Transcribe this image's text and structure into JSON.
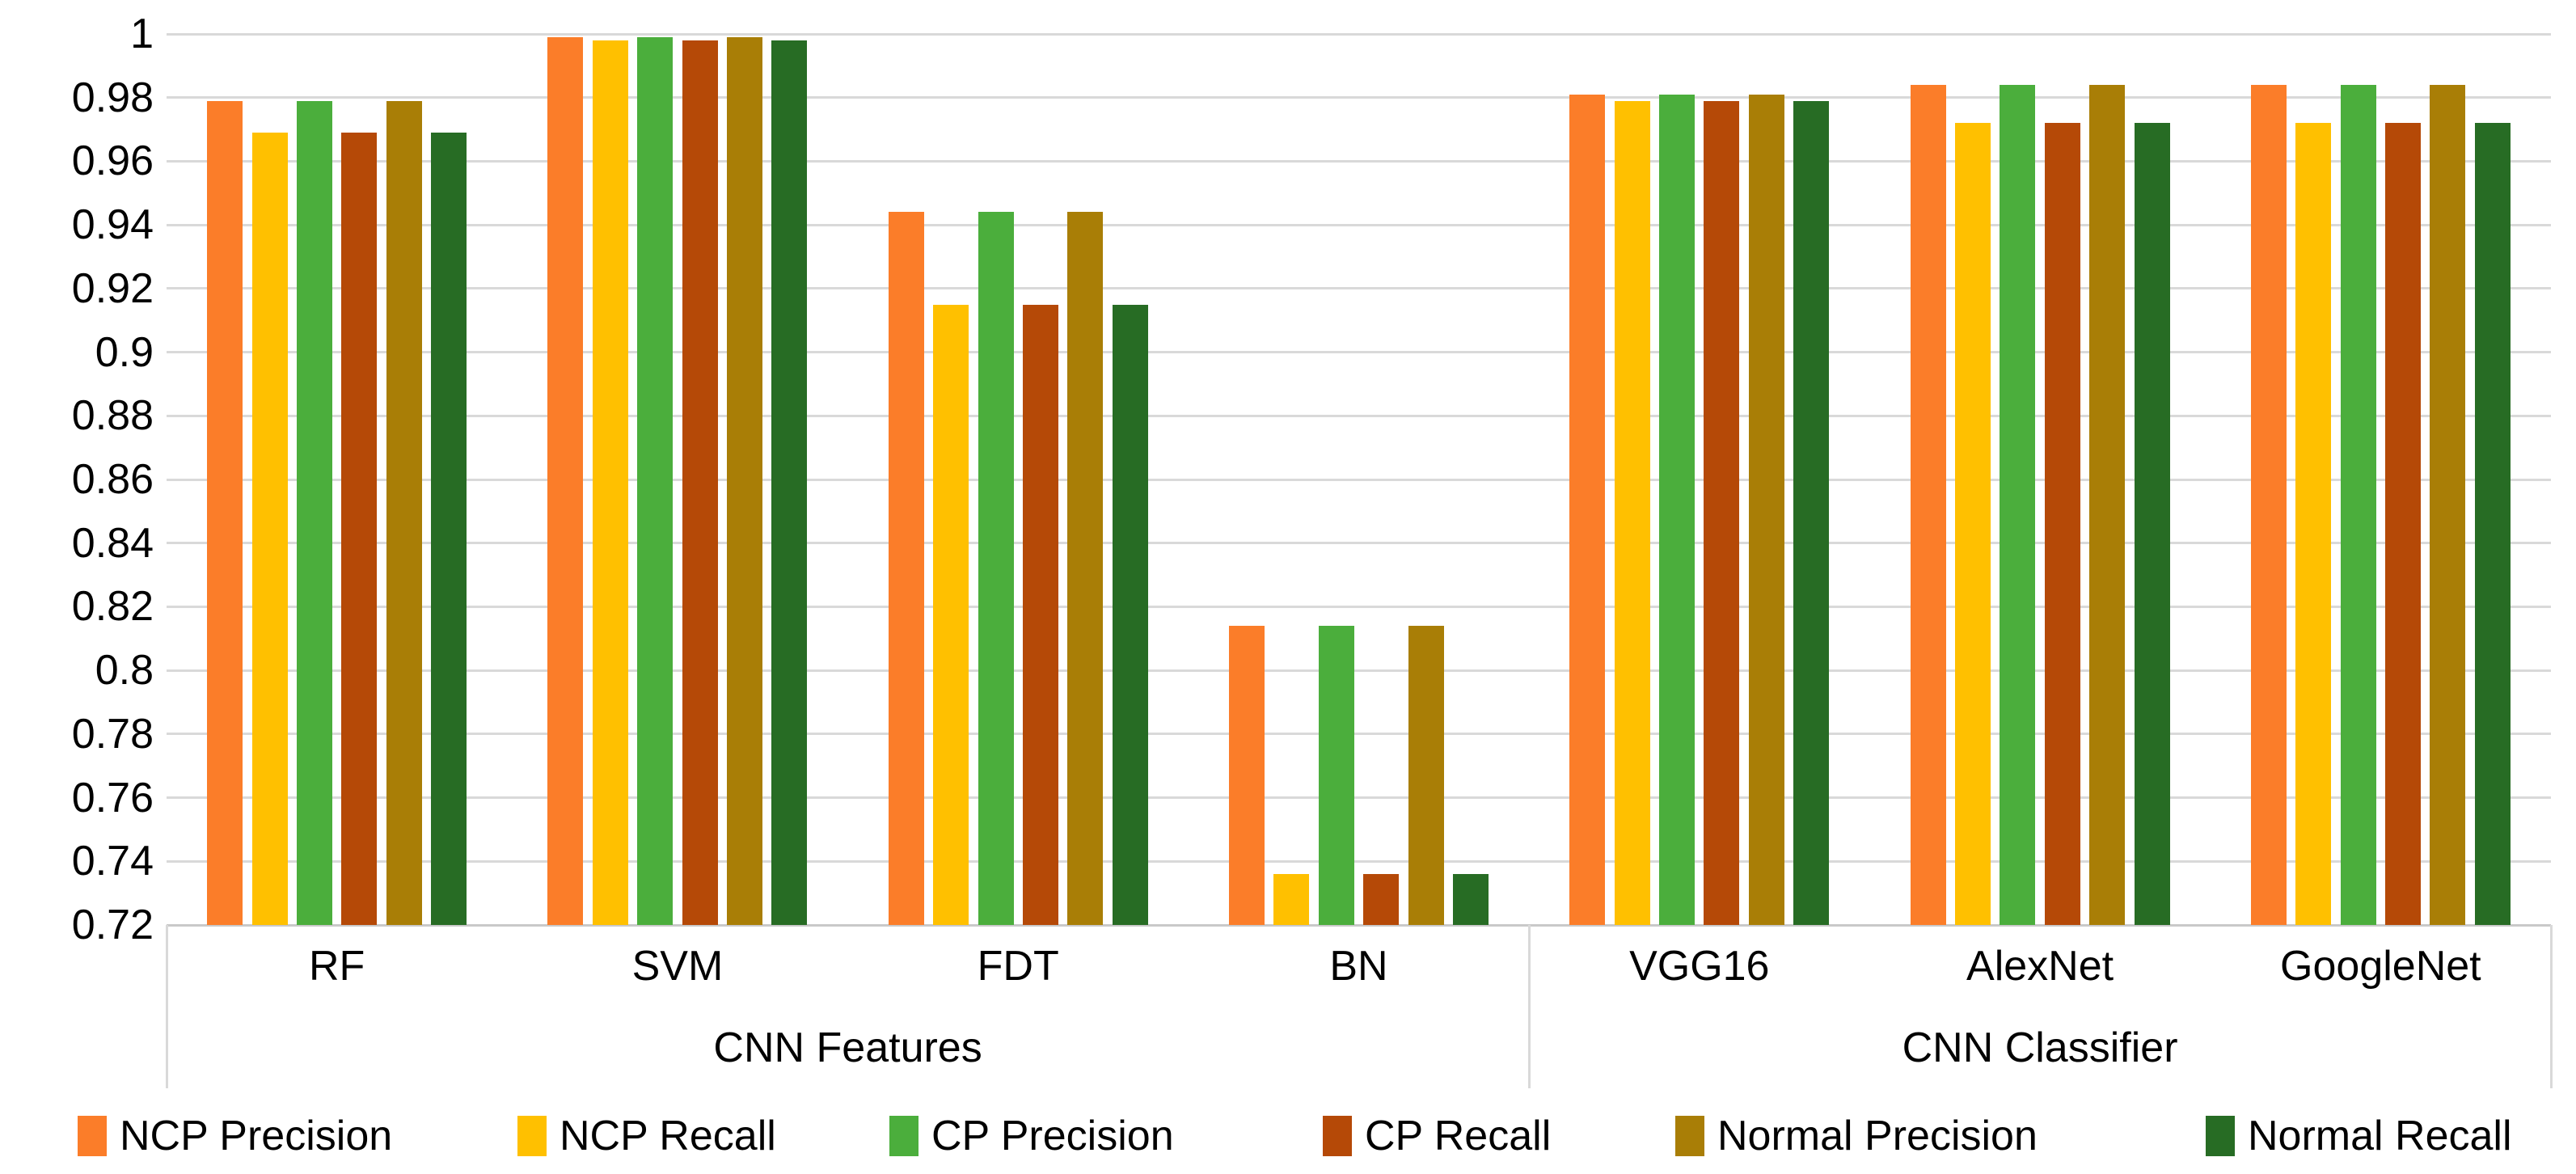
{
  "chart_data": {
    "type": "bar",
    "title": "",
    "categories": [
      "RF",
      "SVM",
      "FDT",
      "BN",
      "VGG16",
      "AlexNet",
      "GoogleNet"
    ],
    "category_groups": [
      {
        "label": "CNN Features",
        "span": 4
      },
      {
        "label": "CNN Classifier",
        "span": 3
      }
    ],
    "series": [
      {
        "name": "NCP Precision",
        "color": "#FB7D29",
        "values": [
          0.979,
          0.999,
          0.944,
          0.814,
          0.981,
          0.984,
          0.984
        ]
      },
      {
        "name": "NCP Recall",
        "color": "#FFC000",
        "values": [
          0.969,
          0.998,
          0.915,
          0.736,
          0.979,
          0.972,
          0.972
        ]
      },
      {
        "name": "CP Precision",
        "color": "#4BAE3C",
        "values": [
          0.979,
          0.999,
          0.944,
          0.814,
          0.981,
          0.984,
          0.984
        ]
      },
      {
        "name": "CP Recall",
        "color": "#B54907",
        "values": [
          0.969,
          0.998,
          0.915,
          0.736,
          0.979,
          0.972,
          0.972
        ]
      },
      {
        "name": "Normal Precision",
        "color": "#A97E06",
        "values": [
          0.979,
          0.999,
          0.944,
          0.814,
          0.981,
          0.984,
          0.984
        ]
      },
      {
        "name": "Normal Recall",
        "color": "#276C24",
        "values": [
          0.969,
          0.998,
          0.915,
          0.736,
          0.979,
          0.972,
          0.972
        ]
      }
    ],
    "y_axis": {
      "min": 0.72,
      "max": 1.0,
      "step": 0.02,
      "tick_labels": [
        "1",
        "0.98",
        "0.96",
        "0.94",
        "0.92",
        "0.9",
        "0.88",
        "0.86",
        "0.84",
        "0.82",
        "0.8",
        "0.78",
        "0.76",
        "0.74",
        "0.72"
      ]
    },
    "grid": true,
    "gridline_color": "#D9D9D9",
    "legend_position": "bottom",
    "xlabel": "",
    "ylabel": ""
  }
}
